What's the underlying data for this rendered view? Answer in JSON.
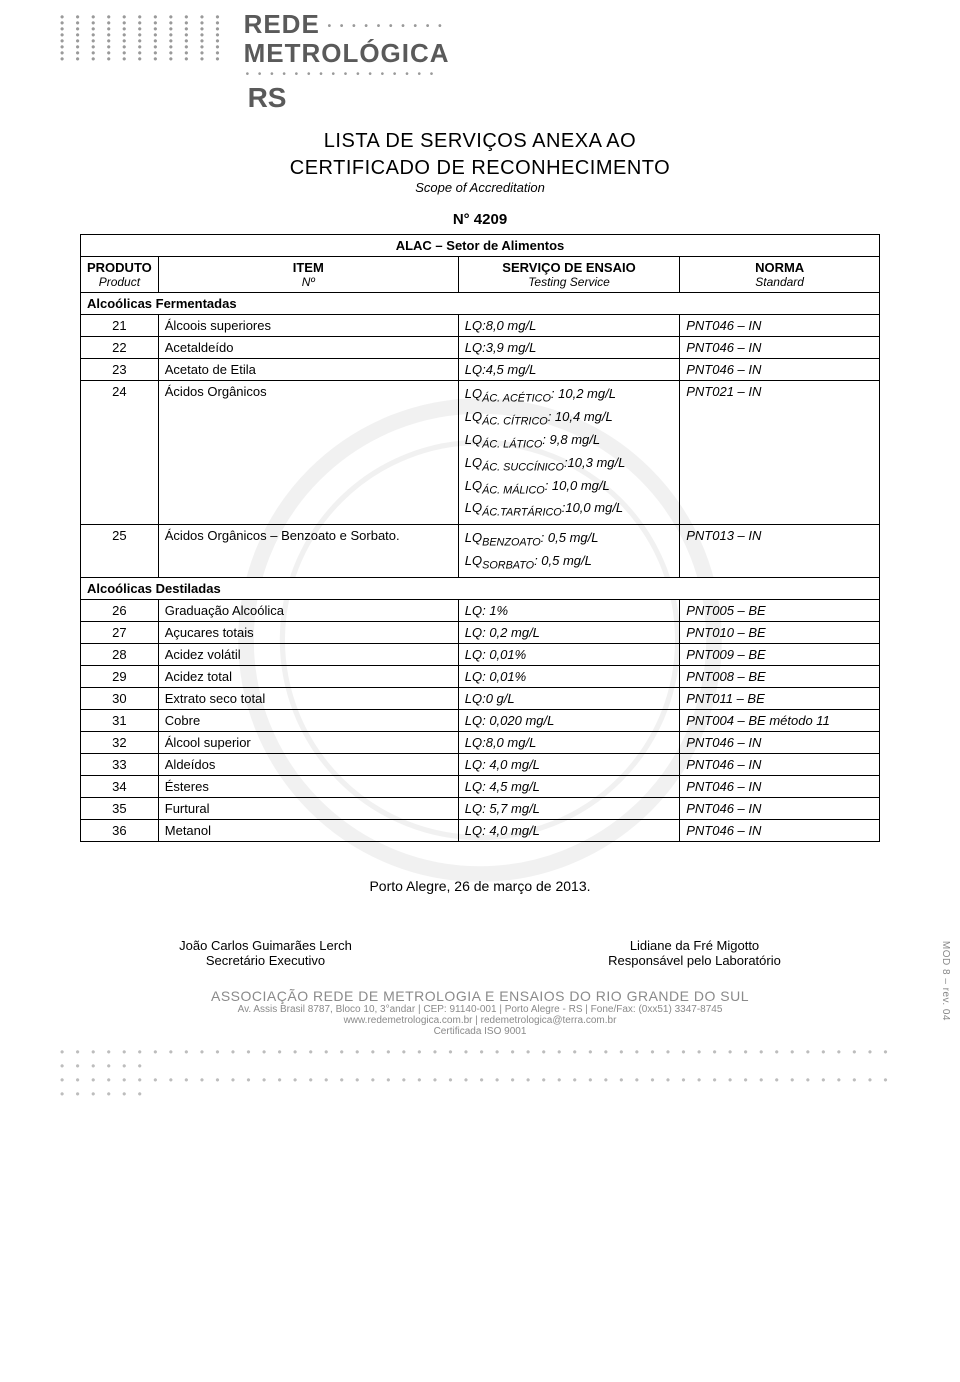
{
  "header": {
    "logo_line1": "REDE",
    "logo_line2": "METROLÓGICA",
    "logo_line3": "RS"
  },
  "titles": {
    "line1": "LISTA DE SERVIÇOS ANEXA AO",
    "line2": "CERTIFICADO DE RECONHECIMENTO",
    "subtitle": "Scope of Accreditation",
    "doc_number": "N° 4209"
  },
  "table": {
    "sector": "ALAC – Setor de Alimentos",
    "head": {
      "produto": "PRODUTO",
      "produto_sub": "Product",
      "item": "ITEM",
      "item_sub": "Nº",
      "servico": "SERVIÇO DE ENSAIO",
      "servico_sub": "Testing Service",
      "norma": "NORMA",
      "norma_sub": "Standard"
    },
    "group1": "Alcoólicas Fermentadas",
    "group2": "Alcoólicas Destiladas",
    "rows1": [
      {
        "n": "21",
        "serv": "Álcoois superiores",
        "lq": "LQ:8,0 mg/L",
        "norm": "PNT046 – IN"
      },
      {
        "n": "22",
        "serv": "Acetaldeído",
        "lq": "LQ:3,9 mg/L",
        "norm": "PNT046 – IN"
      },
      {
        "n": "23",
        "serv": "Acetato de Etila",
        "lq": "LQ:4,5 mg/L",
        "norm": "PNT046 – IN"
      }
    ],
    "row24": {
      "n": "24",
      "serv": "Ácidos Orgânicos",
      "norm": "PNT021 – IN",
      "lines": [
        "LQ<sub>ÁC. ACÉTICO</sub>: 10,2 mg/L",
        "LQ<sub>ÁC. CÍTRICO</sub>: 10,4 mg/L",
        "LQ<sub>ÁC. LÁTICO</sub>: 9,8 mg/L",
        "LQ<sub>ÁC. SUCCÍNICO</sub>:10,3 mg/L",
        "LQ<sub>ÁC. MÁLICO</sub>: 10,0 mg/L",
        "LQ<sub>ÁC.TARTÁRICO</sub>:10,0 mg/L"
      ]
    },
    "row25": {
      "n": "25",
      "serv": "Ácidos Orgânicos – Benzoato e Sorbato.",
      "norm": "PNT013 – IN",
      "lines": [
        "LQ<sub>BENZOATO</sub>: 0,5 mg/L",
        "LQ<sub>SORBATO</sub>: 0,5 mg/L"
      ]
    },
    "rows2": [
      {
        "n": "26",
        "serv": "Graduação Alcoólica",
        "lq": "LQ: 1%",
        "norm": "PNT005 – BE"
      },
      {
        "n": "27",
        "serv": "Açucares totais",
        "lq": "LQ: 0,2 mg/L",
        "norm": "PNT010 – BE"
      },
      {
        "n": "28",
        "serv": "Acidez volátil",
        "lq": "LQ: 0,01%",
        "norm": "PNT009 – BE"
      },
      {
        "n": "29",
        "serv": "Acidez total",
        "lq": "LQ: 0,01%",
        "norm": "PNT008 – BE"
      },
      {
        "n": "30",
        "serv": "Extrato seco total",
        "lq": "LQ:0 g/L",
        "norm": "PNT011 – BE"
      },
      {
        "n": "31",
        "serv": "Cobre",
        "lq": "LQ: 0,020 mg/L",
        "norm": "PNT004 – BE método 11"
      },
      {
        "n": "32",
        "serv": "Álcool superior",
        "lq": "LQ:8,0 mg/L",
        "norm": "PNT046 – IN"
      },
      {
        "n": "33",
        "serv": "Aldeídos",
        "lq": "LQ: 4,0 mg/L",
        "norm": "PNT046 – IN"
      },
      {
        "n": "34",
        "serv": "Ésteres",
        "lq": "LQ: 4,5 mg/L",
        "norm": "PNT046 – IN"
      },
      {
        "n": "35",
        "serv": "Furtural",
        "lq": "LQ: 5,7 mg/L",
        "norm": "PNT046 – IN"
      },
      {
        "n": "36",
        "serv": "Metanol",
        "lq": "LQ: 4,0 mg/L",
        "norm": "PNT046 – IN"
      }
    ]
  },
  "date_line": "Porto Alegre, 26 de março de 2013.",
  "sign": {
    "left_name": "João Carlos Guimarães Lerch",
    "left_role": "Secretário  Executivo",
    "right_name": "Lidiane da Fré Migotto",
    "right_role": "Responsável pelo Laboratório"
  },
  "footer": {
    "assoc": "ASSOCIAÇÃO REDE DE METROLOGIA E ENSAIOS DO RIO GRANDE DO SUL",
    "addr": "Av. Assis Brasil 8787, Bloco 10, 3°andar | CEP: 91140-001 | Porto Alegre - RS | Fone/Fax: (0xx51) 3347-8745",
    "web": "www.redemetrologica.com.br | redemetrologica@terra.com.br",
    "cert": "Certificada ISO 9001"
  },
  "side_mod": "MOD 8 – rev. 04",
  "colors": {
    "text": "#000000",
    "grey": "#9a9a9a",
    "footer_grey": "#8a8a8a"
  }
}
